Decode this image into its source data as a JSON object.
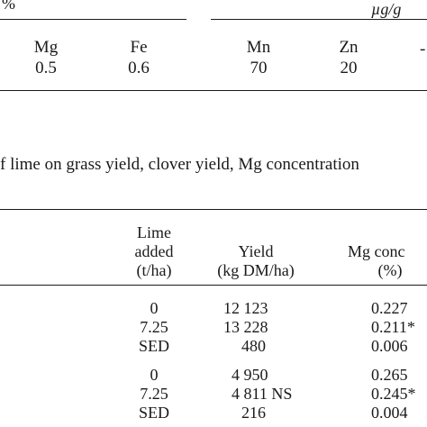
{
  "top_table": {
    "unit_percent": "%",
    "unit_ugg": "µg/g",
    "headers": [
      "Mg",
      "Fe",
      "Mn",
      "Zn"
    ],
    "values": [
      "0.5",
      "0.6",
      "70",
      "20"
    ],
    "trailing_dash": "-"
  },
  "caption": "f lime on grass yield, clover yield, Mg concentration",
  "main_table": {
    "col_lime": [
      "Lime",
      "added",
      "(t/ha)"
    ],
    "col_yield": [
      "Yield",
      "(kg DM/ha)"
    ],
    "col_mg": [
      "Mg conc",
      "(%)"
    ],
    "rows": [
      {
        "lime": "0",
        "yield": "12 123",
        "mg": "0.227"
      },
      {
        "lime": "7.25",
        "yield": "13 228",
        "mg": "0.211*"
      },
      {
        "lime": "SED",
        "yield": "480",
        "mg": "0.006"
      },
      {
        "lime": "0",
        "yield": "4 950",
        "mg": "0.265"
      },
      {
        "lime": "7.25",
        "yield": "4 811 NS",
        "mg": "0.245*"
      },
      {
        "lime": "SED",
        "yield": "216",
        "mg": "0.004"
      }
    ]
  }
}
